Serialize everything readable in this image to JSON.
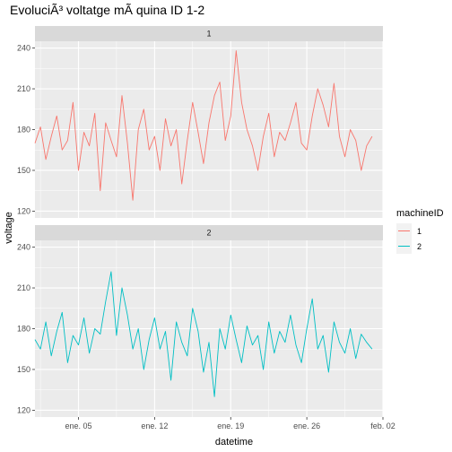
{
  "chart_data": {
    "type": "line",
    "title": "EvoluciÃ³ voltatge mÃ quina ID 1-2",
    "xlabel": "datetime",
    "ylabel": "voltage",
    "x_ticks": [
      "ene. 05",
      "ene. 12",
      "ene. 19",
      "ene. 26",
      "feb. 02"
    ],
    "y_ticks": [
      120,
      150,
      180,
      210,
      240
    ],
    "ylim": [
      115,
      245
    ],
    "xlim": [
      "2015-01-01",
      "2015-02-02"
    ],
    "grid": true,
    "legend": {
      "title": "machineID",
      "position": "right",
      "entries": [
        "1",
        "2"
      ]
    },
    "facets": [
      "1",
      "2"
    ],
    "series": [
      {
        "name": "1",
        "color": "#f8766d",
        "x": [
          "2015-01-01",
          "2015-01-01 12:00",
          "2015-01-02",
          "2015-01-02 12:00",
          "2015-01-03",
          "2015-01-03 12:00",
          "2015-01-04",
          "2015-01-04 12:00",
          "2015-01-05",
          "2015-01-05 12:00",
          "2015-01-06",
          "2015-01-06 12:00",
          "2015-01-07",
          "2015-01-07 12:00",
          "2015-01-08",
          "2015-01-08 12:00",
          "2015-01-09",
          "2015-01-09 12:00",
          "2015-01-10",
          "2015-01-10 12:00",
          "2015-01-11",
          "2015-01-11 12:00",
          "2015-01-12",
          "2015-01-12 12:00",
          "2015-01-13",
          "2015-01-13 12:00",
          "2015-01-14",
          "2015-01-14 12:00",
          "2015-01-15",
          "2015-01-15 12:00",
          "2015-01-16",
          "2015-01-16 12:00",
          "2015-01-17",
          "2015-01-17 12:00",
          "2015-01-18",
          "2015-01-18 12:00",
          "2015-01-19",
          "2015-01-19 12:00",
          "2015-01-20",
          "2015-01-20 12:00",
          "2015-01-21",
          "2015-01-21 12:00",
          "2015-01-22",
          "2015-01-22 12:00",
          "2015-01-23",
          "2015-01-23 12:00",
          "2015-01-24",
          "2015-01-24 12:00",
          "2015-01-25",
          "2015-01-25 12:00",
          "2015-01-26",
          "2015-01-26 12:00",
          "2015-01-27",
          "2015-01-27 12:00",
          "2015-01-28",
          "2015-01-28 12:00",
          "2015-01-29",
          "2015-01-29 12:00",
          "2015-01-30",
          "2015-01-30 12:00",
          "2015-01-31",
          "2015-01-31 12:00",
          "2015-02-01"
        ],
        "y": [
          170,
          182,
          158,
          175,
          190,
          165,
          172,
          200,
          150,
          178,
          168,
          192,
          135,
          185,
          172,
          160,
          205,
          170,
          128,
          180,
          195,
          165,
          175,
          150,
          188,
          168,
          180,
          140,
          172,
          200,
          178,
          155,
          185,
          205,
          215,
          172,
          190,
          238,
          200,
          180,
          168,
          150,
          175,
          192,
          160,
          178,
          172,
          185,
          200,
          170,
          165,
          190,
          210,
          198,
          182,
          214,
          175,
          160,
          180,
          172,
          150,
          168,
          175
        ]
      },
      {
        "name": "2",
        "color": "#00bfc4",
        "x": [
          "2015-01-01",
          "2015-01-01 12:00",
          "2015-01-02",
          "2015-01-02 12:00",
          "2015-01-03",
          "2015-01-03 12:00",
          "2015-01-04",
          "2015-01-04 12:00",
          "2015-01-05",
          "2015-01-05 12:00",
          "2015-01-06",
          "2015-01-06 12:00",
          "2015-01-07",
          "2015-01-07 12:00",
          "2015-01-08",
          "2015-01-08 12:00",
          "2015-01-09",
          "2015-01-09 12:00",
          "2015-01-10",
          "2015-01-10 12:00",
          "2015-01-11",
          "2015-01-11 12:00",
          "2015-01-12",
          "2015-01-12 12:00",
          "2015-01-13",
          "2015-01-13 12:00",
          "2015-01-14",
          "2015-01-14 12:00",
          "2015-01-15",
          "2015-01-15 12:00",
          "2015-01-16",
          "2015-01-16 12:00",
          "2015-01-17",
          "2015-01-17 12:00",
          "2015-01-18",
          "2015-01-18 12:00",
          "2015-01-19",
          "2015-01-19 12:00",
          "2015-01-20",
          "2015-01-20 12:00",
          "2015-01-21",
          "2015-01-21 12:00",
          "2015-01-22",
          "2015-01-22 12:00",
          "2015-01-23",
          "2015-01-23 12:00",
          "2015-01-24",
          "2015-01-24 12:00",
          "2015-01-25",
          "2015-01-25 12:00",
          "2015-01-26",
          "2015-01-26 12:00",
          "2015-01-27",
          "2015-01-27 12:00",
          "2015-01-28",
          "2015-01-28 12:00",
          "2015-01-29",
          "2015-01-29 12:00",
          "2015-01-30",
          "2015-01-30 12:00",
          "2015-01-31",
          "2015-01-31 12:00",
          "2015-02-01"
        ],
        "y": [
          172,
          165,
          185,
          160,
          178,
          192,
          155,
          175,
          168,
          188,
          162,
          180,
          176,
          200,
          222,
          175,
          210,
          190,
          165,
          180,
          150,
          172,
          188,
          165,
          178,
          142,
          185,
          170,
          160,
          195,
          178,
          148,
          170,
          130,
          180,
          165,
          190,
          172,
          155,
          182,
          168,
          175,
          150,
          185,
          162,
          178,
          170,
          190,
          168,
          155,
          180,
          202,
          165,
          175,
          148,
          185,
          170,
          162,
          180,
          158,
          176,
          170,
          165
        ]
      }
    ]
  }
}
